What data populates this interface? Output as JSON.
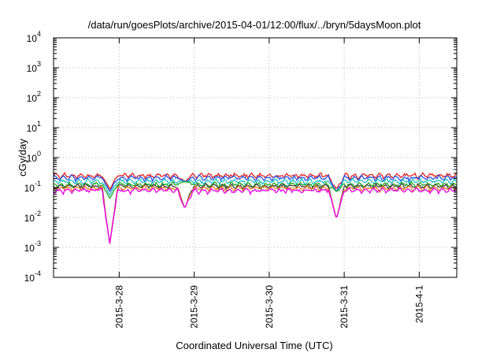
{
  "chart_data": {
    "type": "line",
    "title": "/data/run/goesPlots/archive/2015-04-01/12:00/flux/../bryn/5daysMoon.plot",
    "xlabel": "Coordinated Universal Time (UTC)",
    "ylabel": "cGy/day",
    "y_scale": "log",
    "ylim": [
      0.0001,
      10000
    ],
    "y_ticks": [
      {
        "base": "10",
        "exp": "4"
      },
      {
        "base": "10",
        "exp": "3"
      },
      {
        "base": "10",
        "exp": "2"
      },
      {
        "base": "10",
        "exp": "1"
      },
      {
        "base": "10",
        "exp": "0"
      },
      {
        "base": "10",
        "exp": "-1"
      },
      {
        "base": "10",
        "exp": "-2"
      },
      {
        "base": "10",
        "exp": "-3"
      },
      {
        "base": "10",
        "exp": "-4"
      }
    ],
    "x_range": [
      "2015-03-27 03:00",
      "2015-04-01 12:00"
    ],
    "x_ticks": [
      {
        "label": "2015-3-28",
        "date": "2015-03-28"
      },
      {
        "label": "2015-3-29",
        "date": "2015-03-29"
      },
      {
        "label": "2015-3-30",
        "date": "2015-03-30"
      },
      {
        "label": "2015-3-31",
        "date": "2015-03-31"
      },
      {
        "label": "2015-4-1",
        "date": "2015-04-01"
      }
    ],
    "grid": true,
    "dips": [
      {
        "time": "2015-03-27 21:00",
        "min_value": 0.0013
      },
      {
        "time": "2015-03-28 21:00",
        "min_value": 0.02
      },
      {
        "time": "2015-03-30 21:30",
        "min_value": 0.009
      }
    ],
    "series": [
      {
        "color": "#e8201e",
        "base": 0.25
      },
      {
        "color": "#2255ee",
        "base": 0.21
      },
      {
        "color": "#20c0c0",
        "base": 0.16
      },
      {
        "color": "#22aa22",
        "base": 0.125
      },
      {
        "color": "#444444",
        "base": 0.11
      },
      {
        "color": "#f08020",
        "base": 0.095
      },
      {
        "color": "#ee00ee",
        "base": 0.08
      }
    ]
  }
}
